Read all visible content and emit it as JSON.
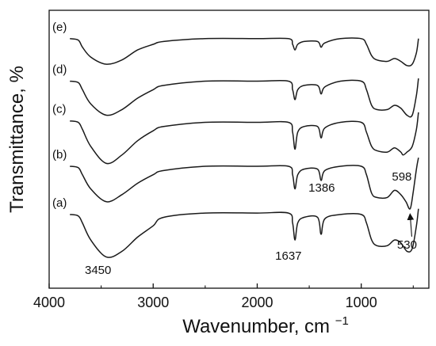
{
  "chart_data": {
    "type": "line",
    "title": "",
    "xlabel": "Wavenumber, cm",
    "xlabel_sup": "−1",
    "ylabel": "Transmittance, %",
    "xlim": [
      4000,
      350
    ],
    "x_reversed": true,
    "y_ticks_shown": false,
    "grid": false,
    "x_ticks": [
      {
        "value": 4000,
        "label": "4000"
      },
      {
        "value": 3000,
        "label": "3000"
      },
      {
        "value": 2000,
        "label": "2000"
      },
      {
        "value": 1000,
        "label": "1000"
      }
    ],
    "line_color": "#1a1a1a",
    "series_labels": [
      "(a)",
      "(b)",
      "(c)",
      "(d)",
      "(e)"
    ],
    "series": [
      {
        "label": "(a)",
        "points": [
          [
            3800,
            16
          ],
          [
            3720,
            15.5
          ],
          [
            3680,
            13
          ],
          [
            3600,
            7
          ],
          [
            3450,
            1
          ],
          [
            3300,
            3
          ],
          [
            3150,
            8
          ],
          [
            3000,
            12
          ],
          [
            2900,
            15
          ],
          [
            2500,
            16.5
          ],
          [
            2000,
            16.5
          ],
          [
            1700,
            16.5
          ],
          [
            1660,
            13
          ],
          [
            1637,
            7
          ],
          [
            1610,
            13
          ],
          [
            1550,
            15
          ],
          [
            1420,
            15
          ],
          [
            1386,
            9
          ],
          [
            1350,
            14.5
          ],
          [
            1200,
            16
          ],
          [
            1000,
            16
          ],
          [
            950,
            13
          ],
          [
            900,
            7
          ],
          [
            850,
            5
          ],
          [
            750,
            5
          ],
          [
            680,
            7
          ],
          [
            620,
            6
          ],
          [
            560,
            3
          ],
          [
            510,
            4
          ],
          [
            470,
            12
          ],
          [
            450,
            18
          ]
        ]
      },
      {
        "label": "(b)",
        "points": [
          [
            3800,
            33
          ],
          [
            3720,
            32.5
          ],
          [
            3680,
            30
          ],
          [
            3600,
            25
          ],
          [
            3450,
            20.5
          ],
          [
            3300,
            23
          ],
          [
            3150,
            27
          ],
          [
            3000,
            30
          ],
          [
            2900,
            31.5
          ],
          [
            2500,
            33
          ],
          [
            2000,
            33
          ],
          [
            1700,
            33
          ],
          [
            1660,
            30
          ],
          [
            1637,
            25
          ],
          [
            1610,
            30
          ],
          [
            1550,
            32
          ],
          [
            1420,
            32
          ],
          [
            1386,
            28
          ],
          [
            1350,
            31.5
          ],
          [
            1200,
            33
          ],
          [
            1000,
            33
          ],
          [
            950,
            30
          ],
          [
            900,
            23.5
          ],
          [
            850,
            22
          ],
          [
            750,
            22
          ],
          [
            680,
            24.5
          ],
          [
            620,
            23
          ],
          [
            570,
            20.5
          ],
          [
            530,
            18
          ],
          [
            500,
            24
          ],
          [
            470,
            32
          ],
          [
            450,
            36
          ]
        ]
      },
      {
        "label": "(c)",
        "points": [
          [
            3800,
            49
          ],
          [
            3720,
            48.5
          ],
          [
            3680,
            46
          ],
          [
            3600,
            40
          ],
          [
            3450,
            34
          ],
          [
            3300,
            37
          ],
          [
            3150,
            42
          ],
          [
            3000,
            45.5
          ],
          [
            2900,
            47
          ],
          [
            2500,
            48.5
          ],
          [
            2000,
            48.5
          ],
          [
            1700,
            48.5
          ],
          [
            1660,
            45
          ],
          [
            1637,
            39
          ],
          [
            1610,
            45
          ],
          [
            1550,
            47
          ],
          [
            1420,
            47
          ],
          [
            1386,
            43
          ],
          [
            1350,
            46.5
          ],
          [
            1200,
            48.5
          ],
          [
            1000,
            48.5
          ],
          [
            950,
            45
          ],
          [
            900,
            40
          ],
          [
            850,
            38.5
          ],
          [
            750,
            38
          ],
          [
            680,
            39.5
          ],
          [
            620,
            38
          ],
          [
            598,
            37
          ],
          [
            560,
            38
          ],
          [
            510,
            40
          ],
          [
            470,
            46
          ],
          [
            450,
            52
          ]
        ]
      },
      {
        "label": "(d)",
        "points": [
          [
            3800,
            63
          ],
          [
            3720,
            62.5
          ],
          [
            3680,
            60
          ],
          [
            3600,
            55
          ],
          [
            3450,
            51
          ],
          [
            3300,
            53
          ],
          [
            3150,
            57
          ],
          [
            3000,
            60
          ],
          [
            2900,
            61.5
          ],
          [
            2500,
            63
          ],
          [
            2000,
            63
          ],
          [
            1700,
            63
          ],
          [
            1660,
            60
          ],
          [
            1637,
            56.5
          ],
          [
            1610,
            60
          ],
          [
            1550,
            61.5
          ],
          [
            1420,
            61.5
          ],
          [
            1386,
            58.5
          ],
          [
            1350,
            61
          ],
          [
            1200,
            63
          ],
          [
            1000,
            63
          ],
          [
            950,
            60
          ],
          [
            900,
            54.5
          ],
          [
            850,
            53
          ],
          [
            750,
            53
          ],
          [
            680,
            54.5
          ],
          [
            620,
            53.5
          ],
          [
            560,
            51
          ],
          [
            510,
            51
          ],
          [
            470,
            58
          ],
          [
            450,
            64
          ]
        ]
      },
      {
        "label": "(e)",
        "points": [
          [
            3800,
            78
          ],
          [
            3720,
            77.5
          ],
          [
            3680,
            75
          ],
          [
            3600,
            71.5
          ],
          [
            3450,
            69
          ],
          [
            3300,
            70.5
          ],
          [
            3150,
            74
          ],
          [
            3000,
            76
          ],
          [
            2900,
            77
          ],
          [
            2500,
            78
          ],
          [
            2000,
            78
          ],
          [
            1700,
            78
          ],
          [
            1660,
            76
          ],
          [
            1637,
            74
          ],
          [
            1610,
            76
          ],
          [
            1550,
            77
          ],
          [
            1420,
            77
          ],
          [
            1386,
            75
          ],
          [
            1350,
            76.5
          ],
          [
            1200,
            78
          ],
          [
            1000,
            78
          ],
          [
            950,
            76
          ],
          [
            900,
            72
          ],
          [
            850,
            70.5
          ],
          [
            750,
            70
          ],
          [
            680,
            71
          ],
          [
            620,
            70
          ],
          [
            560,
            68.5
          ],
          [
            510,
            69
          ],
          [
            470,
            73
          ],
          [
            450,
            78
          ]
        ]
      }
    ],
    "annotations": [
      {
        "text": "3450",
        "x": 3530,
        "y": -5,
        "arrow": false
      },
      {
        "text": "1637",
        "x": 1700,
        "y": 0,
        "arrow": false
      },
      {
        "text": "1386",
        "x": 1380,
        "y": 24,
        "arrow": false
      },
      {
        "text": "598",
        "x": 610,
        "y": 28,
        "arrow": false
      },
      {
        "text": "530",
        "x": 560,
        "y": 4,
        "arrow": true,
        "arrow_to_x": 530,
        "arrow_to_y": 17
      }
    ]
  }
}
